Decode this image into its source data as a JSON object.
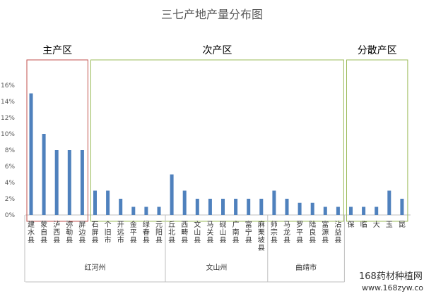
{
  "chart_data": {
    "type": "bar",
    "title": "三七产地产量分布图",
    "xlabel": "",
    "ylabel": "",
    "ylim": [
      0,
      16
    ],
    "ytick_labels": [
      "0%",
      "2%",
      "4%",
      "6%",
      "8%",
      "10%",
      "12%",
      "14%",
      "16%"
    ],
    "grid": false,
    "bar_color": "#4f81bd",
    "categories": [
      "建水县",
      "蒙自县",
      "泸西县",
      "弥勒县",
      "屏边县",
      "石屏县",
      "个旧市",
      "开远市",
      "金平县",
      "绿春县",
      "元阳县",
      "丘北县",
      "西畴县",
      "文山县",
      "马关县",
      "砚山县",
      "广南县",
      "富宁县",
      "麻栗坡县",
      "师宗县",
      "马龙县",
      "罗平县",
      "陆良县",
      "富源县",
      "沾益县",
      "保",
      "临",
      "大",
      "玉",
      "昆"
    ],
    "values": [
      15,
      10,
      8,
      8,
      8,
      3,
      3,
      2,
      1,
      1,
      1,
      5,
      3,
      2,
      2,
      2,
      2,
      2,
      2,
      3,
      2,
      1.5,
      1.5,
      1,
      1,
      1,
      1,
      1,
      3,
      2
    ],
    "zones": [
      {
        "label": "主产区",
        "color": "#c0504d",
        "start": 0,
        "end": 4
      },
      {
        "label": "次产区",
        "color": "#9bbb59",
        "start": 5,
        "end": 24
      },
      {
        "label": "分散产区",
        "color": "#9bbb59",
        "start": 25,
        "end": 29
      }
    ],
    "groups": [
      {
        "label": "红河州",
        "start": 0,
        "end": 10
      },
      {
        "label": "文山州",
        "start": 11,
        "end": 18
      },
      {
        "label": "曲靖市",
        "start": 19,
        "end": 24
      }
    ]
  },
  "watermark": {
    "line1": "168药材种植网",
    "line2": "www.168zyw.com"
  }
}
